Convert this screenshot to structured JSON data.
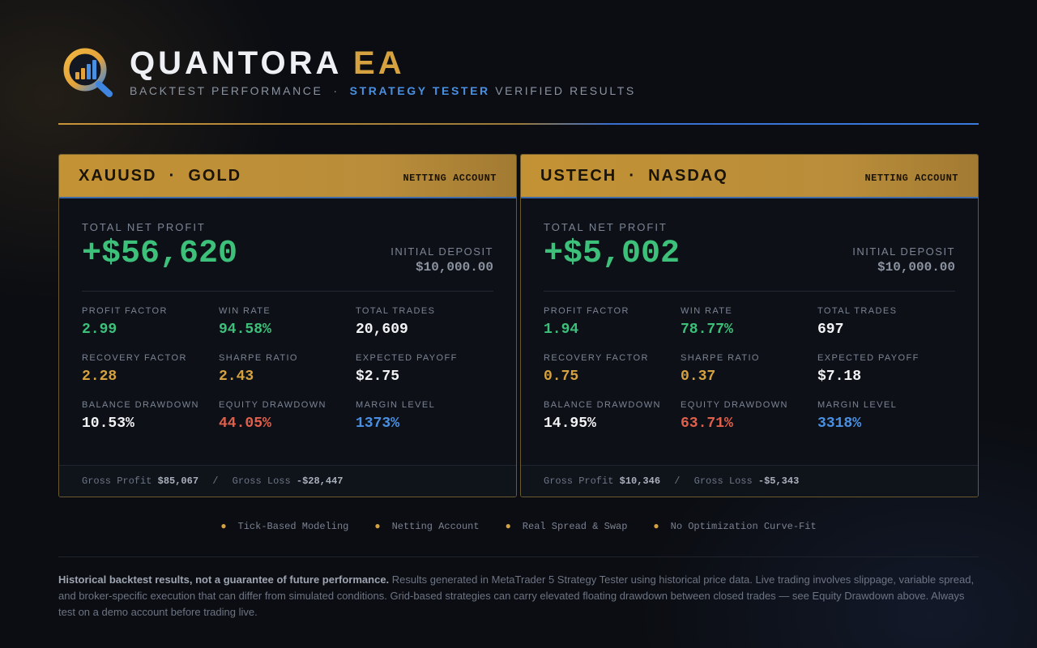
{
  "brand": {
    "name_main": "QUANTORA",
    "name_accent": "EA",
    "subtitle_pre": "BACKTEST PERFORMANCE  ·  ",
    "subtitle_highlight": "STRATEGY TESTER",
    "subtitle_post": " VERIFIED RESULTS",
    "logo_icon": "magnifier-chart-icon"
  },
  "colors": {
    "gold": "#d6a23f",
    "green": "#3cc07a",
    "red": "#e0604c",
    "blue": "#4a90e2",
    "background": "#0b0d12"
  },
  "cards": [
    {
      "title": "XAUUSD  ·  GOLD",
      "badge": "NETTING ACCOUNT",
      "net_profit_label": "TOTAL NET PROFIT",
      "net_profit": "+$56,620",
      "deposit_label": "INITIAL DEPOSIT",
      "deposit": "$10,000.00",
      "metrics": [
        {
          "label": "PROFIT FACTOR",
          "value": "2.99"
        },
        {
          "label": "WIN RATE",
          "value": "94.58%"
        },
        {
          "label": "TOTAL TRADES",
          "value": "20,609"
        },
        {
          "label": "RECOVERY FACTOR",
          "value": "2.28"
        },
        {
          "label": "SHARPE RATIO",
          "value": "2.43"
        },
        {
          "label": "EXPECTED PAYOFF",
          "value": "$2.75"
        },
        {
          "label": "BALANCE DRAWDOWN",
          "value": "10.53%"
        },
        {
          "label": "EQUITY DRAWDOWN",
          "value": "44.05%"
        },
        {
          "label": "MARGIN LEVEL",
          "value": "1373%"
        }
      ],
      "gross_profit_label": "Gross Profit",
      "gross_profit": "$85,067",
      "gross_loss_label": "Gross Loss",
      "gross_loss": "-$28,447"
    },
    {
      "title": "USTECH  ·  NASDAQ",
      "badge": "NETTING ACCOUNT",
      "net_profit_label": "TOTAL NET PROFIT",
      "net_profit": "+$5,002",
      "deposit_label": "INITIAL DEPOSIT",
      "deposit": "$10,000.00",
      "metrics": [
        {
          "label": "PROFIT FACTOR",
          "value": "1.94"
        },
        {
          "label": "WIN RATE",
          "value": "78.77%"
        },
        {
          "label": "TOTAL TRADES",
          "value": "697"
        },
        {
          "label": "RECOVERY FACTOR",
          "value": "0.75"
        },
        {
          "label": "SHARPE RATIO",
          "value": "0.37"
        },
        {
          "label": "EXPECTED PAYOFF",
          "value": "$7.18"
        },
        {
          "label": "BALANCE DRAWDOWN",
          "value": "14.95%"
        },
        {
          "label": "EQUITY DRAWDOWN",
          "value": "63.71%"
        },
        {
          "label": "MARGIN LEVEL",
          "value": "3318%"
        }
      ],
      "gross_profit_label": "Gross Profit",
      "gross_profit": "$10,346",
      "gross_loss_label": "Gross Loss",
      "gross_loss": "-$5,343"
    }
  ],
  "features": [
    "Tick-Based Modeling",
    "Netting Account",
    "Real Spread & Swap",
    "No Optimization Curve-Fit"
  ],
  "disclaimer": {
    "bold": "Historical backtest results, not a guarantee of future performance.",
    "text": " Results generated in MetaTrader 5 Strategy Tester using historical price data. Live trading involves slippage, variable spread, and broker-specific execution that can differ from simulated conditions. Grid-based strategies can carry elevated floating drawdown between closed trades — see Equity Drawdown above. Always test on a demo account before trading live."
  }
}
